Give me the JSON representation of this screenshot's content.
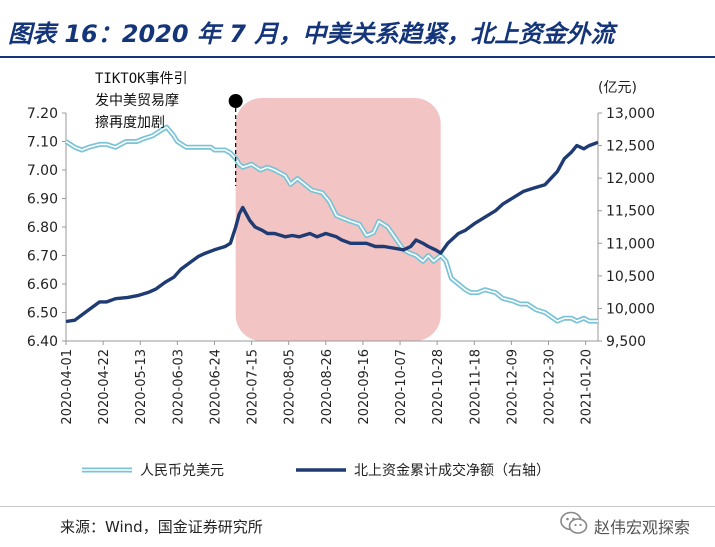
{
  "title": "图表 16：2020 年 7 月，中美关系趋紧，北上资金外流",
  "source": "来源：Wind，国金证券研究所",
  "watermark": "赵伟宏观探索",
  "colors": {
    "title": "#14357a",
    "left_series": "#7ac3d6",
    "right_series": "#1f3b73",
    "shade": "#f2c4c4"
  },
  "chart_data": {
    "type": "line",
    "annotation": "TIKTOK事件引发中美贸易摩擦再度加剧",
    "right_unit": "(亿元)",
    "y_left": {
      "min": 6.4,
      "max": 7.2,
      "ticks": [
        "6.40",
        "6.50",
        "6.60",
        "6.70",
        "6.80",
        "6.90",
        "7.00",
        "7.10",
        "7.20"
      ]
    },
    "y_right": {
      "min": 9500,
      "max": 13000,
      "ticks": [
        "9,500",
        "10,000",
        "10,500",
        "11,000",
        "11,500",
        "12,000",
        "12,500",
        "13,000"
      ]
    },
    "x_ticks": [
      "2020-04-01",
      "2020-04-22",
      "2020-05-13",
      "2020-06-03",
      "2020-06-24",
      "2020-07-15",
      "2020-08-05",
      "2020-08-26",
      "2020-09-16",
      "2020-10-07",
      "2020-10-28",
      "2020-11-18",
      "2020-12-09",
      "2020-12-30",
      "2021-01-20"
    ],
    "x_range": [
      "2020-04-01",
      "2021-01-27"
    ],
    "event_date": "2020-07-06",
    "shaded_range": [
      "2020-07-06",
      "2020-10-30"
    ],
    "legend_position": "bottom",
    "series": [
      {
        "name": "人民币兑美元",
        "axis": "left",
        "points": [
          [
            "2020-04-01",
            7.1
          ],
          [
            "2020-04-06",
            7.08
          ],
          [
            "2020-04-10",
            7.07
          ],
          [
            "2020-04-14",
            7.08
          ],
          [
            "2020-04-20",
            7.09
          ],
          [
            "2020-04-24",
            7.09
          ],
          [
            "2020-04-29",
            7.08
          ],
          [
            "2020-05-05",
            7.1
          ],
          [
            "2020-05-11",
            7.1
          ],
          [
            "2020-05-15",
            7.11
          ],
          [
            "2020-05-20",
            7.12
          ],
          [
            "2020-05-25",
            7.14
          ],
          [
            "2020-05-28",
            7.15
          ],
          [
            "2020-06-01",
            7.12
          ],
          [
            "2020-06-03",
            7.1
          ],
          [
            "2020-06-08",
            7.08
          ],
          [
            "2020-06-12",
            7.08
          ],
          [
            "2020-06-17",
            7.08
          ],
          [
            "2020-06-22",
            7.08
          ],
          [
            "2020-06-24",
            7.07
          ],
          [
            "2020-06-30",
            7.07
          ],
          [
            "2020-07-03",
            7.06
          ],
          [
            "2020-07-06",
            7.04
          ],
          [
            "2020-07-08",
            7.02
          ],
          [
            "2020-07-10",
            7.01
          ],
          [
            "2020-07-15",
            7.02
          ],
          [
            "2020-07-20",
            7.0
          ],
          [
            "2020-07-24",
            7.01
          ],
          [
            "2020-07-28",
            7.0
          ],
          [
            "2020-08-03",
            6.98
          ],
          [
            "2020-08-06",
            6.95
          ],
          [
            "2020-08-10",
            6.97
          ],
          [
            "2020-08-14",
            6.95
          ],
          [
            "2020-08-18",
            6.93
          ],
          [
            "2020-08-24",
            6.92
          ],
          [
            "2020-08-28",
            6.89
          ],
          [
            "2020-09-01",
            6.84
          ],
          [
            "2020-09-05",
            6.83
          ],
          [
            "2020-09-09",
            6.82
          ],
          [
            "2020-09-14",
            6.81
          ],
          [
            "2020-09-18",
            6.77
          ],
          [
            "2020-09-22",
            6.78
          ],
          [
            "2020-09-25",
            6.82
          ],
          [
            "2020-09-30",
            6.8
          ],
          [
            "2020-10-09",
            6.72
          ],
          [
            "2020-10-12",
            6.71
          ],
          [
            "2020-10-16",
            6.7
          ],
          [
            "2020-10-20",
            6.68
          ],
          [
            "2020-10-23",
            6.7
          ],
          [
            "2020-10-26",
            6.68
          ],
          [
            "2020-10-30",
            6.7
          ],
          [
            "2020-11-02",
            6.68
          ],
          [
            "2020-11-05",
            6.62
          ],
          [
            "2020-11-09",
            6.6
          ],
          [
            "2020-11-13",
            6.58
          ],
          [
            "2020-11-16",
            6.57
          ],
          [
            "2020-11-20",
            6.57
          ],
          [
            "2020-11-24",
            6.58
          ],
          [
            "2020-11-30",
            6.57
          ],
          [
            "2020-12-04",
            6.55
          ],
          [
            "2020-12-10",
            6.54
          ],
          [
            "2020-12-14",
            6.53
          ],
          [
            "2020-12-18",
            6.53
          ],
          [
            "2020-12-23",
            6.51
          ],
          [
            "2020-12-28",
            6.5
          ],
          [
            "2021-01-04",
            6.47
          ],
          [
            "2021-01-08",
            6.48
          ],
          [
            "2021-01-12",
            6.48
          ],
          [
            "2021-01-15",
            6.47
          ],
          [
            "2021-01-19",
            6.48
          ],
          [
            "2021-01-22",
            6.47
          ],
          [
            "2021-01-27",
            6.47
          ]
        ]
      },
      {
        "name": "北上资金累计成交净额（右轴）",
        "axis": "right",
        "points": [
          [
            "2020-04-01",
            9800
          ],
          [
            "2020-04-06",
            9820
          ],
          [
            "2020-04-10",
            9900
          ],
          [
            "2020-04-15",
            10000
          ],
          [
            "2020-04-20",
            10100
          ],
          [
            "2020-04-24",
            10100
          ],
          [
            "2020-04-29",
            10150
          ],
          [
            "2020-05-06",
            10170
          ],
          [
            "2020-05-12",
            10200
          ],
          [
            "2020-05-18",
            10250
          ],
          [
            "2020-05-22",
            10300
          ],
          [
            "2020-05-27",
            10400
          ],
          [
            "2020-06-01",
            10480
          ],
          [
            "2020-06-05",
            10600
          ],
          [
            "2020-06-10",
            10700
          ],
          [
            "2020-06-15",
            10800
          ],
          [
            "2020-06-19",
            10850
          ],
          [
            "2020-06-24",
            10900
          ],
          [
            "2020-06-30",
            10950
          ],
          [
            "2020-07-03",
            11000
          ],
          [
            "2020-07-06",
            11250
          ],
          [
            "2020-07-08",
            11450
          ],
          [
            "2020-07-10",
            11550
          ],
          [
            "2020-07-14",
            11350
          ],
          [
            "2020-07-17",
            11250
          ],
          [
            "2020-07-21",
            11200
          ],
          [
            "2020-07-24",
            11150
          ],
          [
            "2020-07-28",
            11150
          ],
          [
            "2020-08-03",
            11100
          ],
          [
            "2020-08-07",
            11120
          ],
          [
            "2020-08-11",
            11100
          ],
          [
            "2020-08-17",
            11150
          ],
          [
            "2020-08-21",
            11100
          ],
          [
            "2020-08-26",
            11150
          ],
          [
            "2020-09-01",
            11100
          ],
          [
            "2020-09-04",
            11050
          ],
          [
            "2020-09-09",
            11000
          ],
          [
            "2020-09-14",
            11000
          ],
          [
            "2020-09-18",
            11000
          ],
          [
            "2020-09-23",
            10950
          ],
          [
            "2020-09-28",
            10950
          ],
          [
            "2020-10-09",
            10900
          ],
          [
            "2020-10-13",
            10950
          ],
          [
            "2020-10-16",
            11050
          ],
          [
            "2020-10-20",
            11000
          ],
          [
            "2020-10-23",
            10950
          ],
          [
            "2020-10-27",
            10900
          ],
          [
            "2020-10-30",
            10850
          ],
          [
            "2020-11-03",
            11000
          ],
          [
            "2020-11-09",
            11150
          ],
          [
            "2020-11-13",
            11200
          ],
          [
            "2020-11-18",
            11300
          ],
          [
            "2020-11-24",
            11400
          ],
          [
            "2020-11-30",
            11500
          ],
          [
            "2020-12-04",
            11600
          ],
          [
            "2020-12-10",
            11700
          ],
          [
            "2020-12-16",
            11800
          ],
          [
            "2020-12-22",
            11850
          ],
          [
            "2020-12-28",
            11900
          ],
          [
            "2021-01-04",
            12100
          ],
          [
            "2021-01-08",
            12300
          ],
          [
            "2021-01-12",
            12400
          ],
          [
            "2021-01-15",
            12500
          ],
          [
            "2021-01-19",
            12450
          ],
          [
            "2021-01-22",
            12500
          ],
          [
            "2021-01-27",
            12550
          ]
        ]
      }
    ]
  }
}
